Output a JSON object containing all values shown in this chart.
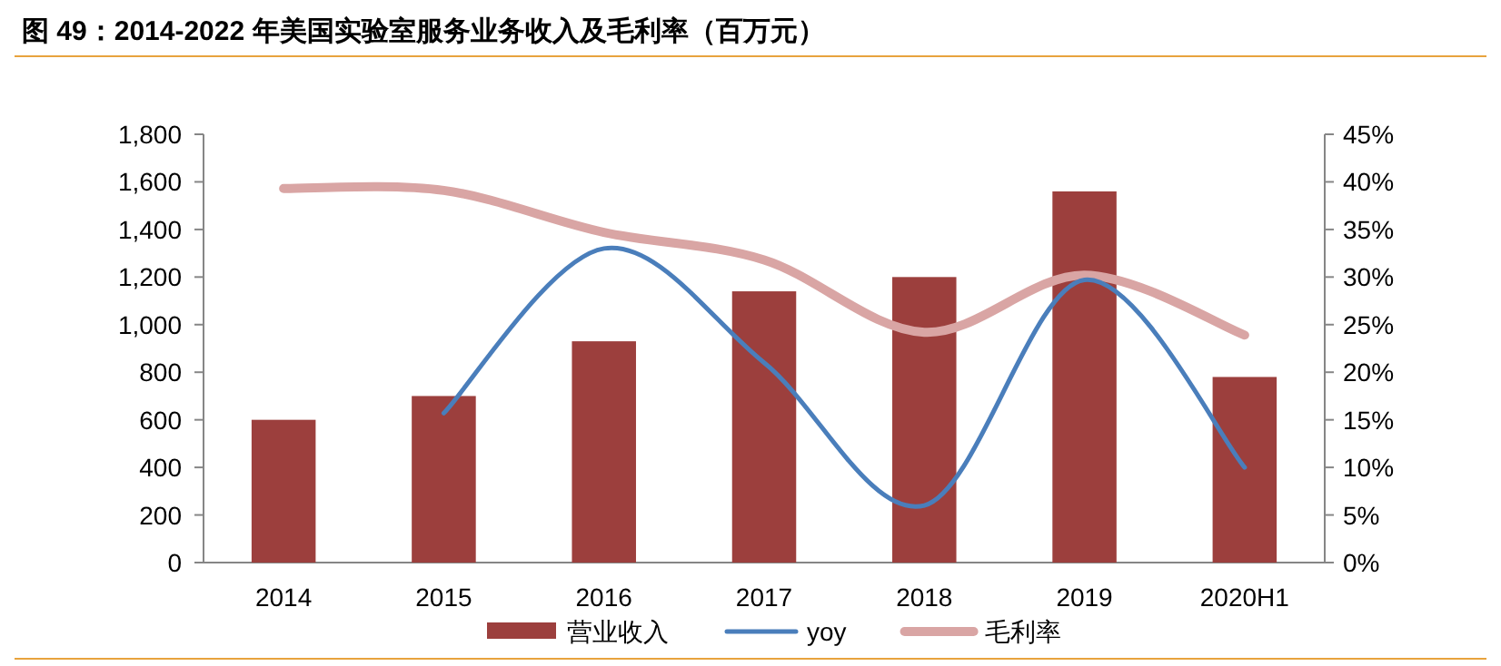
{
  "chart_data": {
    "type": "bar",
    "title": "图 49：2014-2022 年美国实验室服务业务收入及毛利率（百万元）",
    "categories": [
      "2014",
      "2015",
      "2016",
      "2017",
      "2018",
      "2019",
      "2020H1"
    ],
    "series": [
      {
        "name": "营业收入",
        "color": "#9c3f3d",
        "values": [
          600,
          700,
          930,
          1140,
          1200,
          1560,
          780
        ]
      },
      {
        "name": "yoy",
        "type": "line",
        "axis": "y2",
        "color": "#4a7ebb",
        "values": [
          null,
          15.7,
          33,
          21,
          6,
          29.7,
          10
        ]
      },
      {
        "name": "毛利率",
        "type": "line",
        "axis": "y2",
        "color": "#d9a5a4",
        "values": [
          39.3,
          39.1,
          34.7,
          31.8,
          24.2,
          30.2,
          23.9
        ]
      }
    ],
    "ylim": [
      0,
      1800
    ],
    "yticks": [
      0,
      200,
      400,
      600,
      800,
      {
        "value": 1000,
        "label": "1,000"
      },
      {
        "value": 1200,
        "label": "1,200"
      },
      {
        "value": 1400,
        "label": "1,400"
      },
      {
        "value": 1600,
        "label": "1,600"
      },
      {
        "value": 1800,
        "label": "1,800"
      }
    ],
    "y2lim": [
      0,
      45
    ],
    "y2ticks": [
      {
        "value": 0,
        "label": "0%"
      },
      {
        "value": 5,
        "label": "5%"
      },
      {
        "value": 10,
        "label": "10%"
      },
      {
        "value": 15,
        "label": "15%"
      },
      {
        "value": 20,
        "label": "20%"
      },
      {
        "value": 25,
        "label": "25%"
      },
      {
        "value": 30,
        "label": "30%"
      },
      {
        "value": 35,
        "label": "35%"
      },
      {
        "value": 40,
        "label": "40%"
      },
      {
        "value": 45,
        "label": "45%"
      }
    ],
    "grid": false,
    "legend": "bottom"
  }
}
